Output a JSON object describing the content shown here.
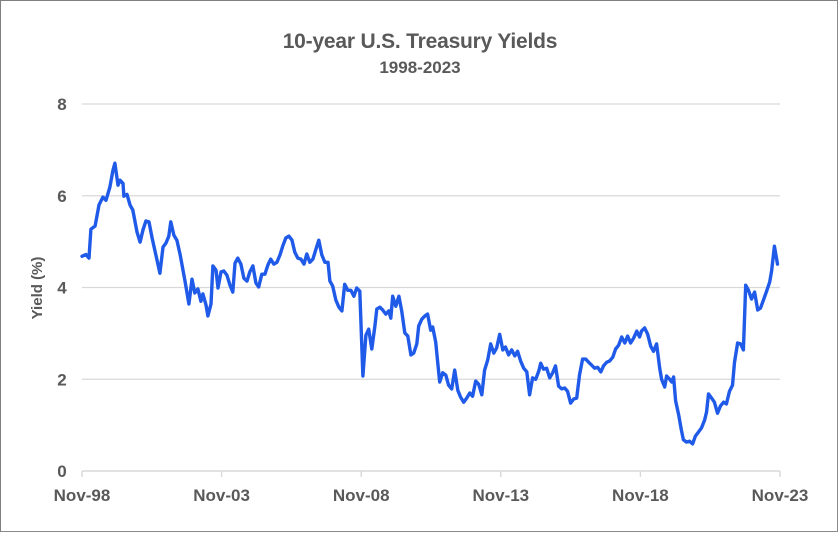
{
  "chart_data": {
    "type": "line",
    "title": "10-year U.S. Treasury Yields",
    "subtitle": "1998-2023",
    "xlabel": "",
    "ylabel": "Yield (%)",
    "ylim": [
      0,
      8
    ],
    "yticks": [
      0,
      2,
      4,
      6,
      8
    ],
    "xticks": [
      "Nov-98",
      "Nov-03",
      "Nov-08",
      "Nov-13",
      "Nov-18",
      "Nov-23"
    ],
    "xlim_years_since_nov98": [
      0,
      25
    ],
    "grid": "horizontal",
    "legend": null,
    "series": [
      {
        "name": "10-year U.S. Treasury Yield",
        "color": "#1f5ae8",
        "x_unit": "years since Nov-98",
        "points": [
          [
            0.0,
            4.68
          ],
          [
            0.14,
            4.72
          ],
          [
            0.25,
            4.64
          ],
          [
            0.32,
            5.27
          ],
          [
            0.47,
            5.34
          ],
          [
            0.61,
            5.8
          ],
          [
            0.75,
            5.97
          ],
          [
            0.86,
            5.9
          ],
          [
            1.0,
            6.19
          ],
          [
            1.11,
            6.56
          ],
          [
            1.18,
            6.71
          ],
          [
            1.29,
            6.23
          ],
          [
            1.36,
            6.34
          ],
          [
            1.47,
            6.27
          ],
          [
            1.5,
            5.99
          ],
          [
            1.61,
            6.03
          ],
          [
            1.72,
            5.8
          ],
          [
            1.82,
            5.69
          ],
          [
            1.97,
            5.21
          ],
          [
            2.08,
            4.99
          ],
          [
            2.18,
            5.25
          ],
          [
            2.29,
            5.45
          ],
          [
            2.4,
            5.43
          ],
          [
            2.51,
            5.08
          ],
          [
            2.68,
            4.62
          ],
          [
            2.79,
            4.31
          ],
          [
            2.9,
            4.88
          ],
          [
            3.01,
            4.97
          ],
          [
            3.11,
            5.12
          ],
          [
            3.18,
            5.43
          ],
          [
            3.29,
            5.14
          ],
          [
            3.4,
            5.03
          ],
          [
            3.51,
            4.73
          ],
          [
            3.69,
            4.14
          ],
          [
            3.83,
            3.64
          ],
          [
            3.94,
            4.18
          ],
          [
            4.04,
            3.88
          ],
          [
            4.15,
            3.97
          ],
          [
            4.26,
            3.7
          ],
          [
            4.33,
            3.86
          ],
          [
            4.44,
            3.62
          ],
          [
            4.51,
            3.38
          ],
          [
            4.62,
            3.64
          ],
          [
            4.69,
            4.47
          ],
          [
            4.8,
            4.38
          ],
          [
            4.87,
            3.99
          ],
          [
            4.98,
            4.34
          ],
          [
            5.08,
            4.36
          ],
          [
            5.19,
            4.27
          ],
          [
            5.3,
            4.05
          ],
          [
            5.4,
            3.9
          ],
          [
            5.48,
            4.53
          ],
          [
            5.58,
            4.64
          ],
          [
            5.69,
            4.51
          ],
          [
            5.8,
            4.2
          ],
          [
            5.91,
            4.14
          ],
          [
            6.01,
            4.34
          ],
          [
            6.12,
            4.47
          ],
          [
            6.23,
            4.1
          ],
          [
            6.33,
            4.01
          ],
          [
            6.44,
            4.29
          ],
          [
            6.55,
            4.29
          ],
          [
            6.66,
            4.49
          ],
          [
            6.76,
            4.62
          ],
          [
            6.87,
            4.51
          ],
          [
            6.98,
            4.55
          ],
          [
            7.09,
            4.71
          ],
          [
            7.19,
            4.9
          ],
          [
            7.3,
            5.08
          ],
          [
            7.41,
            5.12
          ],
          [
            7.52,
            5.03
          ],
          [
            7.62,
            4.77
          ],
          [
            7.73,
            4.64
          ],
          [
            7.84,
            4.62
          ],
          [
            7.95,
            4.51
          ],
          [
            8.05,
            4.73
          ],
          [
            8.16,
            4.55
          ],
          [
            8.27,
            4.62
          ],
          [
            8.38,
            4.84
          ],
          [
            8.48,
            5.03
          ],
          [
            8.59,
            4.71
          ],
          [
            8.7,
            4.55
          ],
          [
            8.81,
            4.55
          ],
          [
            8.88,
            4.14
          ],
          [
            8.98,
            4.03
          ],
          [
            9.09,
            3.73
          ],
          [
            9.2,
            3.57
          ],
          [
            9.31,
            3.49
          ],
          [
            9.41,
            4.07
          ],
          [
            9.52,
            3.94
          ],
          [
            9.63,
            3.94
          ],
          [
            9.74,
            3.81
          ],
          [
            9.84,
            3.99
          ],
          [
            9.95,
            3.92
          ],
          [
            10.06,
            2.07
          ],
          [
            10.17,
            2.96
          ],
          [
            10.27,
            3.09
          ],
          [
            10.38,
            2.66
          ],
          [
            10.49,
            3.16
          ],
          [
            10.56,
            3.53
          ],
          [
            10.67,
            3.57
          ],
          [
            10.77,
            3.51
          ],
          [
            10.88,
            3.42
          ],
          [
            10.99,
            3.49
          ],
          [
            11.06,
            3.33
          ],
          [
            11.13,
            3.81
          ],
          [
            11.24,
            3.59
          ],
          [
            11.35,
            3.81
          ],
          [
            11.45,
            3.49
          ],
          [
            11.56,
            3.01
          ],
          [
            11.67,
            2.94
          ],
          [
            11.78,
            2.53
          ],
          [
            11.88,
            2.57
          ],
          [
            11.99,
            2.77
          ],
          [
            12.06,
            3.16
          ],
          [
            12.17,
            3.31
          ],
          [
            12.28,
            3.38
          ],
          [
            12.38,
            3.42
          ],
          [
            12.49,
            3.07
          ],
          [
            12.56,
            3.14
          ],
          [
            12.67,
            2.81
          ],
          [
            12.74,
            2.37
          ],
          [
            12.81,
            1.94
          ],
          [
            12.92,
            2.14
          ],
          [
            13.03,
            2.09
          ],
          [
            13.13,
            1.87
          ],
          [
            13.24,
            1.79
          ],
          [
            13.35,
            2.2
          ],
          [
            13.46,
            1.76
          ],
          [
            13.56,
            1.61
          ],
          [
            13.67,
            1.5
          ],
          [
            13.78,
            1.59
          ],
          [
            13.89,
            1.7
          ],
          [
            13.99,
            1.63
          ],
          [
            14.1,
            1.96
          ],
          [
            14.21,
            1.89
          ],
          [
            14.32,
            1.66
          ],
          [
            14.42,
            2.2
          ],
          [
            14.53,
            2.42
          ],
          [
            14.64,
            2.77
          ],
          [
            14.75,
            2.57
          ],
          [
            14.85,
            2.68
          ],
          [
            14.96,
            2.98
          ],
          [
            15.07,
            2.64
          ],
          [
            15.17,
            2.7
          ],
          [
            15.28,
            2.53
          ],
          [
            15.39,
            2.64
          ],
          [
            15.5,
            2.51
          ],
          [
            15.6,
            2.61
          ],
          [
            15.71,
            2.4
          ],
          [
            15.82,
            2.24
          ],
          [
            15.93,
            2.16
          ],
          [
            16.03,
            1.66
          ],
          [
            16.14,
            2.03
          ],
          [
            16.25,
            2.0
          ],
          [
            16.36,
            2.18
          ],
          [
            16.43,
            2.35
          ],
          [
            16.53,
            2.22
          ],
          [
            16.64,
            2.24
          ],
          [
            16.75,
            2.03
          ],
          [
            16.86,
            2.14
          ],
          [
            16.96,
            2.29
          ],
          [
            17.07,
            1.85
          ],
          [
            17.18,
            1.79
          ],
          [
            17.29,
            1.81
          ],
          [
            17.39,
            1.74
          ],
          [
            17.5,
            1.48
          ],
          [
            17.61,
            1.57
          ],
          [
            17.72,
            1.59
          ],
          [
            17.82,
            2.09
          ],
          [
            17.93,
            2.44
          ],
          [
            18.04,
            2.44
          ],
          [
            18.15,
            2.37
          ],
          [
            18.25,
            2.31
          ],
          [
            18.36,
            2.24
          ],
          [
            18.47,
            2.26
          ],
          [
            18.58,
            2.16
          ],
          [
            18.68,
            2.29
          ],
          [
            18.79,
            2.37
          ],
          [
            18.9,
            2.4
          ],
          [
            19.01,
            2.48
          ],
          [
            19.11,
            2.66
          ],
          [
            19.22,
            2.74
          ],
          [
            19.33,
            2.92
          ],
          [
            19.44,
            2.79
          ],
          [
            19.54,
            2.94
          ],
          [
            19.65,
            2.79
          ],
          [
            19.76,
            2.9
          ],
          [
            19.87,
            3.05
          ],
          [
            19.97,
            2.92
          ],
          [
            20.04,
            3.05
          ],
          [
            20.15,
            3.12
          ],
          [
            20.26,
            2.98
          ],
          [
            20.37,
            2.72
          ],
          [
            20.47,
            2.61
          ],
          [
            20.58,
            2.77
          ],
          [
            20.69,
            2.24
          ],
          [
            20.76,
            2.0
          ],
          [
            20.87,
            1.83
          ],
          [
            20.94,
            2.07
          ],
          [
            21.05,
            2.0
          ],
          [
            21.12,
            1.94
          ],
          [
            21.19,
            2.05
          ],
          [
            21.26,
            1.53
          ],
          [
            21.37,
            1.22
          ],
          [
            21.47,
            0.89
          ],
          [
            21.54,
            0.68
          ],
          [
            21.65,
            0.63
          ],
          [
            21.76,
            0.65
          ],
          [
            21.87,
            0.59
          ],
          [
            21.97,
            0.76
          ],
          [
            22.08,
            0.85
          ],
          [
            22.19,
            0.94
          ],
          [
            22.3,
            1.11
          ],
          [
            22.37,
            1.29
          ],
          [
            22.44,
            1.68
          ],
          [
            22.55,
            1.59
          ],
          [
            22.65,
            1.5
          ],
          [
            22.76,
            1.26
          ],
          [
            22.87,
            1.42
          ],
          [
            22.98,
            1.5
          ],
          [
            23.08,
            1.46
          ],
          [
            23.19,
            1.74
          ],
          [
            23.3,
            1.87
          ],
          [
            23.37,
            2.37
          ],
          [
            23.48,
            2.79
          ],
          [
            23.59,
            2.77
          ],
          [
            23.69,
            2.64
          ],
          [
            23.77,
            4.05
          ],
          [
            23.87,
            3.94
          ],
          [
            23.98,
            3.75
          ],
          [
            24.09,
            3.9
          ],
          [
            24.2,
            3.51
          ],
          [
            24.3,
            3.55
          ],
          [
            24.41,
            3.73
          ],
          [
            24.52,
            3.92
          ],
          [
            24.63,
            4.12
          ],
          [
            24.7,
            4.36
          ],
          [
            24.8,
            4.9
          ],
          [
            24.91,
            4.51
          ]
        ]
      }
    ]
  },
  "colors": {
    "line": "#1f5ae8",
    "grid": "#d9d9d9",
    "text": "#595959",
    "border": "#7f7f7f"
  }
}
